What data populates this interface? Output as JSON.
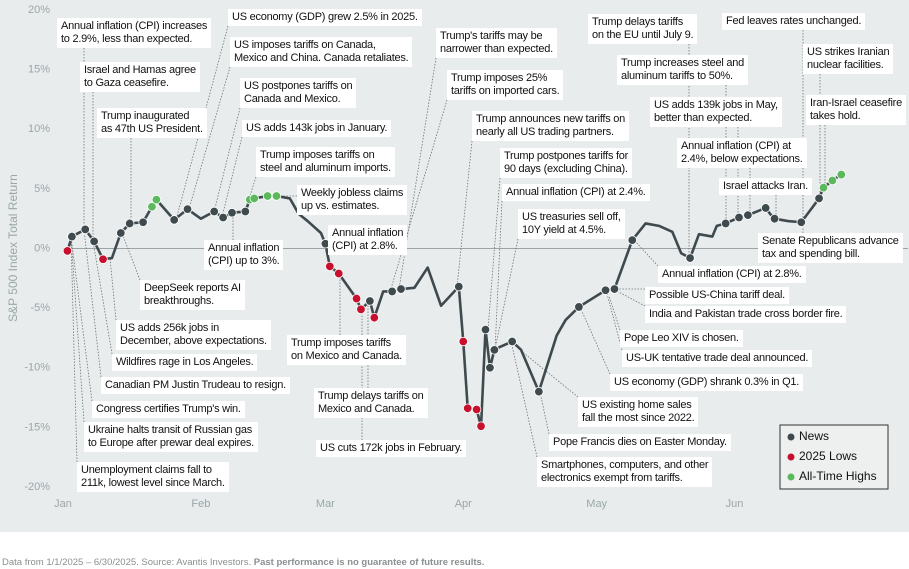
{
  "chart_data": {
    "type": "line",
    "y_label": "S&P 500 Index Total Return",
    "xlim": [
      0,
      190
    ],
    "xticks": [
      {
        "value": 0,
        "label": "Jan"
      },
      {
        "value": 31,
        "label": "Feb"
      },
      {
        "value": 59,
        "label": "Mar"
      },
      {
        "value": 90,
        "label": "Apr"
      },
      {
        "value": 120,
        "label": "May"
      },
      {
        "value": 151,
        "label": "Jun"
      }
    ],
    "ylim": [
      -20,
      20
    ],
    "yticks": [
      {
        "value": 20,
        "label": "20%"
      },
      {
        "value": 15,
        "label": "15%"
      },
      {
        "value": 10,
        "label": "10%"
      },
      {
        "value": 5,
        "label": "5%"
      },
      {
        "value": 0,
        "label": "0%"
      },
      {
        "value": -5,
        "label": "-5%"
      },
      {
        "value": -10,
        "label": "-10%"
      },
      {
        "value": -15,
        "label": "-15%"
      },
      {
        "value": -20,
        "label": "-20%"
      }
    ],
    "grid": false,
    "legend": "lower right",
    "line": {
      "color": "#3f4a4f",
      "x": [
        1,
        2,
        5,
        7,
        9,
        11,
        13,
        15,
        18,
        20,
        21,
        25,
        28,
        31,
        34,
        36,
        38,
        41,
        42,
        43,
        46,
        48,
        51,
        53,
        55,
        58,
        59,
        60,
        62,
        66,
        67,
        69,
        70,
        72,
        74,
        76,
        79,
        82,
        85,
        89,
        90,
        91,
        93,
        94,
        95,
        96,
        97,
        98,
        101,
        103,
        107,
        111,
        113,
        116,
        122,
        124,
        128,
        131,
        134,
        137,
        139,
        141,
        143,
        146,
        147,
        149,
        152,
        154,
        156,
        158,
        159,
        160,
        163,
        166,
        168,
        170,
        171,
        173,
        175
      ],
      "values": [
        -0.2,
        1.0,
        1.6,
        0.6,
        -0.9,
        -0.8,
        1.3,
        2.1,
        2.2,
        3.5,
        4.1,
        2.4,
        3.3,
        2.5,
        3.1,
        2.6,
        3.0,
        3.1,
        4.1,
        4.2,
        4.4,
        4.4,
        4.2,
        2.9,
        2.3,
        1.3,
        0.4,
        -1.5,
        -2.1,
        -4.2,
        -5.1,
        -4.4,
        -5.8,
        -3.6,
        -3.6,
        -3.4,
        -3.3,
        -1.6,
        -4.8,
        -3.2,
        -7.8,
        -13.4,
        -13.5,
        -14.9,
        -6.8,
        -10.0,
        -8.5,
        -8.3,
        -7.8,
        -8.5,
        -12.0,
        -7.3,
        -6.0,
        -4.9,
        -3.5,
        -3.4,
        0.7,
        2.1,
        1.9,
        1.4,
        -0.4,
        -0.8,
        1.2,
        1.0,
        1.9,
        2.1,
        2.6,
        2.8,
        3.1,
        3.4,
        2.9,
        2.5,
        2.3,
        2.2,
        3.2,
        4.2,
        5.1,
        5.7,
        6.2
      ]
    },
    "series": [
      {
        "name": "News",
        "color": "#3f4a4f",
        "x": [
          2,
          5,
          7,
          13,
          15,
          18,
          25,
          28,
          34,
          36,
          38,
          41,
          59,
          69,
          74,
          76,
          89,
          95,
          96,
          97,
          101,
          107,
          116,
          122,
          124,
          128,
          141,
          149,
          152,
          154,
          158,
          160,
          166,
          170
        ],
        "values": [
          1.0,
          1.6,
          0.6,
          1.3,
          2.1,
          2.2,
          2.4,
          3.3,
          3.1,
          2.6,
          3.0,
          3.1,
          0.4,
          -4.4,
          -3.6,
          -3.4,
          -3.2,
          -6.8,
          -10.0,
          -8.5,
          -7.8,
          -12.0,
          -4.9,
          -3.5,
          -3.4,
          0.7,
          -0.8,
          2.1,
          2.6,
          2.8,
          3.4,
          2.5,
          2.2,
          4.2
        ]
      },
      {
        "name": "2025 Lows",
        "color": "#c8102e",
        "x": [
          1,
          9,
          60,
          62,
          66,
          67,
          70,
          90,
          91,
          93,
          94
        ],
        "values": [
          -0.2,
          -0.9,
          -1.5,
          -2.1,
          -4.2,
          -5.1,
          -5.8,
          -7.8,
          -13.4,
          -13.5,
          -14.9
        ]
      },
      {
        "name": "All-Time Highs",
        "color": "#5cb85c",
        "x": [
          20,
          21,
          42,
          43,
          46,
          48,
          171,
          173,
          175
        ],
        "values": [
          3.5,
          4.1,
          4.1,
          4.2,
          4.4,
          4.4,
          5.1,
          5.7,
          6.2
        ]
      }
    ],
    "annotations": [
      "Annual inflation (CPI) increases\nto 2.9%, less than expected.",
      "Israel and Hamas agree\nto Gaza ceasefire.",
      "Trump inaugurated\nas 47th US President.",
      "US economy (GDP) grew 2.5% in 2025.",
      "US imposes tariffs on Canada,\nMexico and China. Canada retaliates.",
      "US postpones tariffs on\nCanada and Mexico.",
      "US adds 143k jobs in January.",
      "Trump imposes tariffs on\nsteel and aluminum imports.",
      "Weekly jobless claims\nup vs. estimates.",
      "Annual inflation\n(CPI) up to 3%.",
      "DeepSeek reports AI\nbreakthroughs.",
      "US adds 256k jobs in\nDecember, above expectations.",
      "Wildfires rage in Los Angeles.",
      "Canadian PM Justin Trudeau to resign.",
      "Congress certifies Trump's win.",
      "Ukraine halts transit of Russian gas\nto Europe after prewar deal expires.",
      "Unemployment claims fall to\n211k, lowest level since March.",
      "Trump's tariffs may be\nnarrower than expected.",
      "Trump imposes 25%\ntariffs on imported cars.",
      "Annual inflation\n(CPI) at 2.8%.",
      "Trump imposes tariffs\non Mexico and Canada.",
      "Trump delays tariffs on\nMexico and Canada.",
      "US cuts 172k jobs in February.",
      "Trump announces new tariffs on\nnearly all US trading partners.",
      "Trump postpones tariffs for\n90 days (excluding China).",
      "Annual inflation (CPI) at 2.4%.",
      "US treasuries sell off,\n10Y yield at 4.5%.",
      "US existing home sales\nfall the most since 2022.",
      "Pope Francis dies on Easter Monday.",
      "Smartphones, computers, and other\nelectronics exempt from tariffs.",
      "Trump delays tariffs\non the EU until July 9.",
      "Trump increases steel and\naluminum tariffs to 50%.",
      "US adds 139k jobs in May,\nbetter than expected.",
      "Fed leaves rates unchanged.",
      "US strikes Iranian\nnuclear facilities.",
      "Iran-Israel ceasefire\ntakes hold.",
      "Annual inflation (CPI) at\n2.4%, below expectations.",
      "Israel attacks Iran.",
      "Senate Republicans advance\ntax and spending bill.",
      "Annual inflation (CPI) at 2.8%.",
      "Possible US-China tariff deal.",
      "India and Pakistan trade cross border fire.",
      "Pope Leo XIV is chosen.",
      "US-UK tentative trade deal announced.",
      "US economy (GDP) shrank 0.3% in Q1."
    ],
    "source": "Data from 1/1/2025 – 6/30/2025. Source: Avantis Investors.",
    "disclaimer": "Past performance is no guarantee of future results."
  }
}
